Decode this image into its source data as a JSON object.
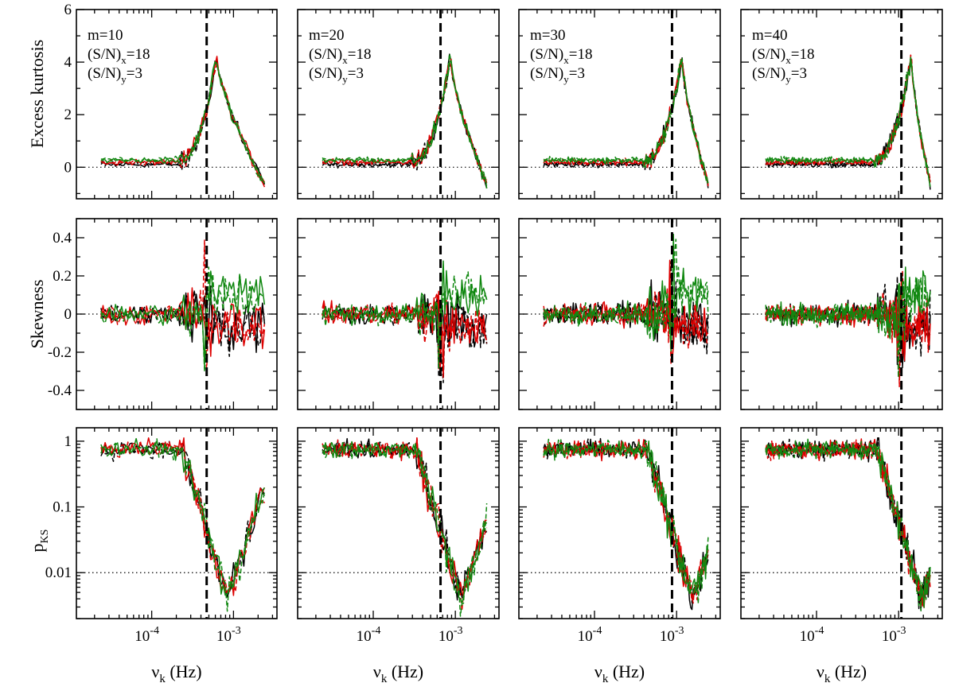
{
  "figure": {
    "row_titles": [
      "Excess kurtosis",
      "Skewness",
      "p"
    ],
    "pks_subscript": "KS",
    "x_label_main": "ν",
    "x_label_sub": "k",
    "x_label_unit": "(Hz)",
    "colors": {
      "c1": "#000000",
      "c2": "#dd0000",
      "c3": "#118811",
      "axes": "#000000"
    }
  },
  "panels": [
    {
      "m": "m=10",
      "sn_x": "(S/N)",
      "sn_x_sub": "x",
      "sn_x_val": "=18",
      "sn_y": "(S/N)",
      "sn_y_sub": "y",
      "sn_y_val": "=3",
      "vline": 0.00047
    },
    {
      "m": "m=20",
      "sn_x": "(S/N)",
      "sn_x_sub": "x",
      "sn_x_val": "=18",
      "sn_y": "(S/N)",
      "sn_y_sub": "y",
      "sn_y_val": "=3",
      "vline": 0.00066
    },
    {
      "m": "m=30",
      "sn_x": "(S/N)",
      "sn_x_sub": "x",
      "sn_x_val": "=18",
      "sn_y": "(S/N)",
      "sn_y_sub": "y",
      "sn_y_val": "=3",
      "vline": 0.00088
    },
    {
      "m": "m=40",
      "sn_x": "(S/N)",
      "sn_x_sub": "x",
      "sn_x_val": "=18",
      "sn_y": "(S/N)",
      "sn_y_sub": "y",
      "sn_y_val": "=3",
      "vline": 0.00108
    }
  ],
  "chart_data": {
    "type": "line",
    "layout": "4 columns x 3 rows",
    "xscale": "log",
    "xlim": [
      1.2e-05,
      0.0034
    ],
    "x_ticks": [
      {
        "base": "10",
        "exp": "-4",
        "value": 0.0001
      },
      {
        "base": "10",
        "exp": "-3",
        "value": 0.001
      }
    ],
    "rows": [
      {
        "ylabel": "Excess kurtosis",
        "ylim": [
          -1.2,
          6
        ],
        "yscale": "linear",
        "ticks": [
          0,
          2,
          4,
          6
        ],
        "tick_labels": [
          "0",
          "2",
          "4",
          "6"
        ],
        "ref_line": 0
      },
      {
        "ylabel": "Skewness",
        "ylim": [
          -0.5,
          0.5
        ],
        "yscale": "linear",
        "ticks": [
          -0.4,
          -0.2,
          0,
          0.2,
          0.4
        ],
        "tick_labels": [
          "-0.4",
          "-0.2",
          "0",
          "0.2",
          "0.4"
        ],
        "ref_line": 0
      },
      {
        "ylabel": "pKS",
        "ylim": [
          0.002,
          1.6
        ],
        "yscale": "log",
        "ticks": [
          0.01,
          0.1,
          1
        ],
        "tick_labels": [
          "0.01",
          "0.1",
          "1"
        ],
        "ref_line": 0.01
      }
    ],
    "series_styles": [
      {
        "name": "black solid",
        "color": "#000000",
        "dash": "solid"
      },
      {
        "name": "black dashed",
        "color": "#000000",
        "dash": "dashed"
      },
      {
        "name": "red solid",
        "color": "#dd0000",
        "dash": "solid"
      },
      {
        "name": "red dashed",
        "color": "#dd0000",
        "dash": "dashed"
      },
      {
        "name": "green solid",
        "color": "#118811",
        "dash": "solid"
      },
      {
        "name": "green dashed",
        "color": "#118811",
        "dash": "dashed"
      }
    ],
    "curve_model": {
      "kurtosis": {
        "baseline": 0.2,
        "peak_value": 4.2,
        "peak_factor": 1.25,
        "end_value": -0.7
      },
      "skewness": {
        "noise_low": 0.08,
        "noise_high": 0.2
      },
      "pks": {
        "plateau": 0.75,
        "drop_to": 0.004,
        "end_value": 0.3
      }
    }
  }
}
